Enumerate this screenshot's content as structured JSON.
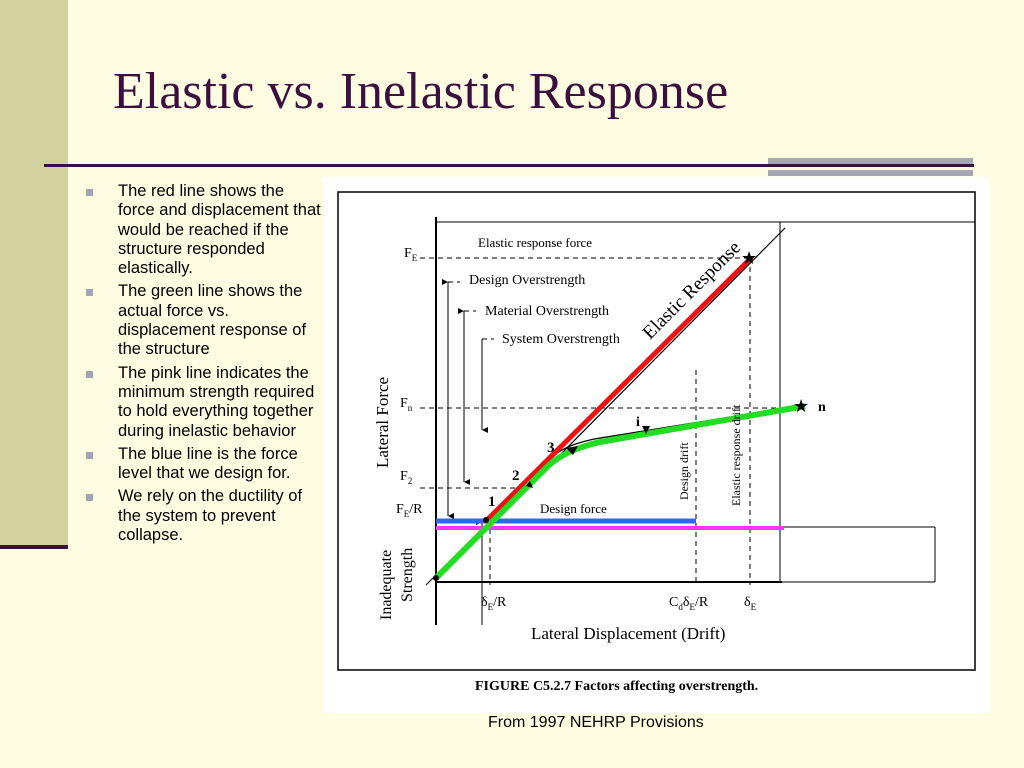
{
  "slide": {
    "title": "Elastic vs. Inelastic Response",
    "source": "From 1997 NEHRP Provisions",
    "colors": {
      "title": "#3b1040",
      "background": "#fefde2",
      "band": "#d4d1a0",
      "accent_bar": "#a6a6b6"
    }
  },
  "bullets": [
    "The red line shows the force and displacement that would be reached if the structure responded elastically.",
    "The green line shows the actual force vs. displacement response of the structure",
    "The pink line indicates the minimum strength required to hold everything together during inelastic behavior",
    "The blue line is the force level that we design for.",
    "We rely on the ductility of the system to prevent collapse."
  ],
  "figure": {
    "caption": "FIGURE C5.2.7 Factors affecting overstrength.",
    "y_axis_label": "Lateral Force",
    "x_axis_label": "Lateral Displacement (Drift)",
    "labels": {
      "elastic_response_force": "Elastic response force",
      "design_overstrength": "Design Overstrength",
      "material_overstrength": "Material Overstrength",
      "system_overstrength": "System Overstrength",
      "elastic_response": "Elastic Response",
      "design_force": "Design force",
      "inadequate": "Inadequate",
      "strength": "Strength",
      "design_drift": "Design drift",
      "elastic_response_drift": "Elastic response drift"
    },
    "y_ticks": {
      "fe_main": "F",
      "fe_sub": "E",
      "fn_main": "F",
      "fn_sub": "n",
      "f2_main": "F",
      "f2_sub": "2",
      "fer_main": "F",
      "fer_sub": "E",
      "fer_tail": "/R"
    },
    "x_ticks": {
      "a_pre": "δ",
      "a_sub": "E",
      "a_tail": "/R",
      "b_pre": "C",
      "b_sub1": "d",
      "b_mid": "δ",
      "b_sub2": "E",
      "b_tail": "/R",
      "c_pre": "δ",
      "c_sub": "E"
    },
    "points": {
      "p1": "1",
      "p2": "2",
      "p3": "3",
      "pi": "i",
      "pn": "n"
    },
    "line_colors": {
      "elastic": "#ee1111",
      "actual": "#22dd22",
      "minimum": "#ff33ff",
      "design": "#3366ee"
    }
  }
}
